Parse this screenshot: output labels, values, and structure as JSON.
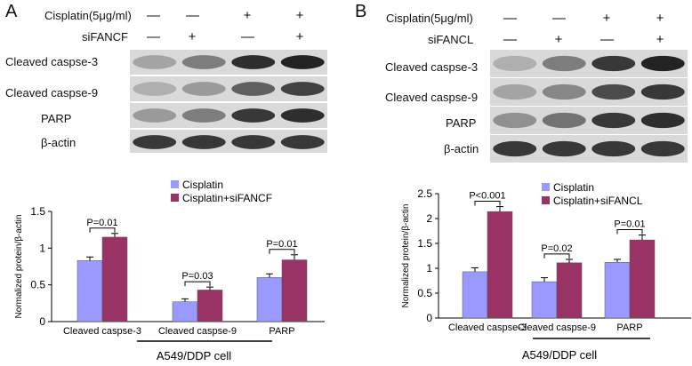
{
  "panels": [
    {
      "letter": "A",
      "conditions": [
        {
          "label": "Cisplatin(5μg/ml)",
          "signs": [
            "—",
            "—",
            "+",
            "+"
          ]
        },
        {
          "label": "siFANCF",
          "signs": [
            "—",
            "+",
            "—",
            "+"
          ]
        }
      ],
      "blots": [
        {
          "label": "Cleaved caspse-3",
          "intensity": [
            0.35,
            0.55,
            0.95,
            1.0
          ]
        },
        {
          "label": "Cleaved caspse-9",
          "intensity": [
            0.3,
            0.4,
            0.7,
            0.85
          ]
        },
        {
          "label": "PARP",
          "intensity": [
            0.4,
            0.55,
            0.9,
            0.95
          ]
        },
        {
          "label": "β-actin",
          "intensity": [
            0.9,
            0.9,
            0.9,
            0.9
          ]
        }
      ],
      "chart_data": {
        "type": "bar",
        "ylabel": "Normalized protein/β-actin",
        "ylim": [
          0,
          1.5
        ],
        "yticks": [
          "0",
          "0.5",
          "1",
          "1.5"
        ],
        "categories": [
          "Cleaved caspse-3",
          "Cleaved caspse-9",
          "PARP"
        ],
        "series": [
          {
            "name": "Cisplatin",
            "values": [
              0.83,
              0.27,
              0.6
            ],
            "errors": [
              0.05,
              0.04,
              0.05
            ],
            "color": "#9999ff"
          },
          {
            "name": "Cisplatin+siFANCF",
            "values": [
              1.15,
              0.43,
              0.84
            ],
            "errors": [
              0.05,
              0.04,
              0.07
            ],
            "color": "#993366"
          }
        ],
        "annotations": [
          "P=0.01",
          "P=0.03",
          "P=0.01"
        ],
        "legend": "top-right",
        "xgroup_label": "A549/DDP cell"
      }
    },
    {
      "letter": "B",
      "conditions": [
        {
          "label": "Cisplatin(5μg/ml)",
          "signs": [
            "—",
            "—",
            "+",
            "+"
          ]
        },
        {
          "label": "siFANCL",
          "signs": [
            "—",
            "+",
            "—",
            "+"
          ]
        }
      ],
      "blots": [
        {
          "label": "Cleaved caspse-3",
          "intensity": [
            0.3,
            0.55,
            0.9,
            1.0
          ]
        },
        {
          "label": "Cleaved caspse-9",
          "intensity": [
            0.35,
            0.5,
            0.8,
            0.9
          ]
        },
        {
          "label": "PARP",
          "intensity": [
            0.45,
            0.6,
            0.9,
            0.95
          ]
        },
        {
          "label": "β-actin",
          "intensity": [
            0.9,
            0.9,
            0.9,
            0.9
          ]
        }
      ],
      "chart_data": {
        "type": "bar",
        "ylabel": "Normalized protein/β-actin",
        "ylim": [
          0,
          2.5
        ],
        "yticks": [
          "0",
          "0.5",
          "1",
          "1.5",
          "2",
          "2.5"
        ],
        "categories": [
          "Cleaved caspse-3",
          "Cleaved caspse-9",
          "PARP"
        ],
        "series": [
          {
            "name": "Cisplatin",
            "values": [
              0.93,
              0.73,
              1.12
            ],
            "errors": [
              0.08,
              0.08,
              0.06
            ],
            "color": "#9999ff"
          },
          {
            "name": "Cisplatin+siFANCL",
            "values": [
              2.14,
              1.11,
              1.57
            ],
            "errors": [
              0.1,
              0.07,
              0.1
            ],
            "color": "#993366"
          }
        ],
        "annotations": [
          "P<0.001",
          "P=0.02",
          "P=0.01"
        ],
        "legend": "top-right",
        "xgroup_label": "A549/DDP cell"
      }
    }
  ]
}
